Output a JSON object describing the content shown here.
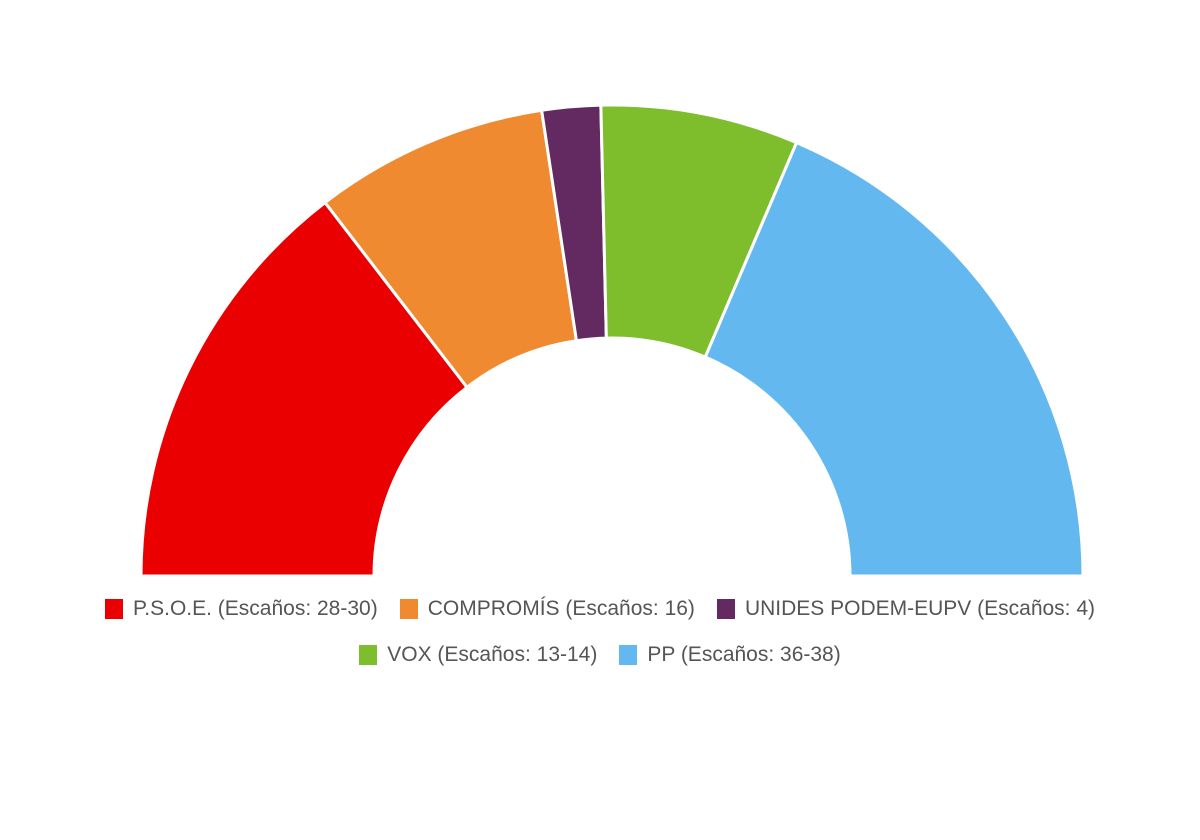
{
  "chart_data": {
    "type": "pie",
    "subtype": "parliament-semicircle",
    "title": "",
    "series": [
      {
        "name": "P.S.O.E.",
        "label": "P.S.O.E. (Escaños: 28-30)",
        "seats": "28-30",
        "value": 29,
        "color": "#ea0000"
      },
      {
        "name": "COMPROMÍS",
        "label": "COMPROMÍS (Escaños: 16)",
        "seats": "16",
        "value": 16,
        "color": "#ef8a30"
      },
      {
        "name": "UNIDES PODEM-EUPV",
        "label": "UNIDES PODEM-EUPV (Escaños: 4)",
        "seats": "4",
        "value": 4,
        "color": "#632a62"
      },
      {
        "name": "VOX",
        "label": "VOX (Escaños: 13-14)",
        "seats": "13-14",
        "value": 13.5,
        "color": "#7ebd2b"
      },
      {
        "name": "PP",
        "label": "PP (Escaños: 36-38)",
        "seats": "36-38",
        "value": 37,
        "color": "#63b8ef"
      }
    ],
    "legend_position": "bottom"
  },
  "legend": {
    "row1": [
      {
        "label": "P.S.O.E. (Escaños: 28-30)",
        "color": "#ea0000"
      },
      {
        "label": "COMPROMÍS (Escaños: 16)",
        "color": "#ef8a30"
      },
      {
        "label": "UNIDES PODEM-EUPV (Escaños: 4)",
        "color": "#632a62"
      }
    ],
    "row2": [
      {
        "label": "VOX (Escaños: 13-14)",
        "color": "#7ebd2b"
      },
      {
        "label": "PP (Escaños: 36-38)",
        "color": "#63b8ef"
      }
    ]
  }
}
